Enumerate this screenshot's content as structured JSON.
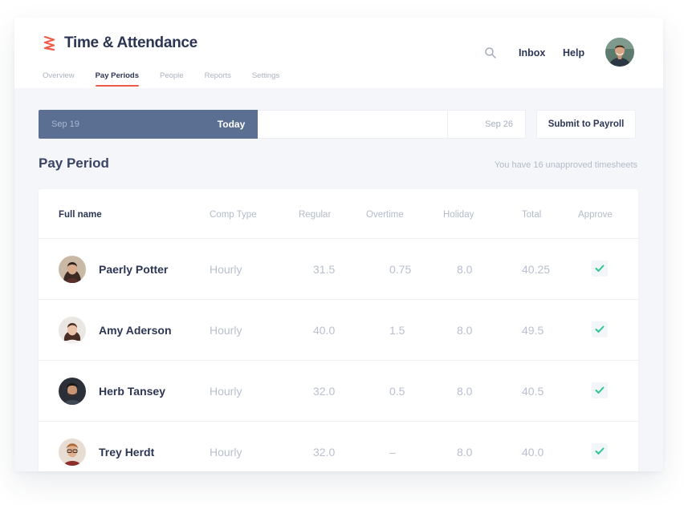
{
  "header": {
    "app_title": "Time & Attendance",
    "nav": [
      {
        "label": "Overview",
        "active": false
      },
      {
        "label": "Pay Periods",
        "active": true
      },
      {
        "label": "People",
        "active": false
      },
      {
        "label": "Reports",
        "active": false
      },
      {
        "label": "Settings",
        "active": false
      }
    ],
    "search_icon": "search-icon",
    "inbox_label": "Inbox",
    "help_label": "Help"
  },
  "timeline": {
    "start_date": "Sep 19",
    "today_label": "Today",
    "end_date": "Sep 26",
    "progress_percent": 45
  },
  "submit_label": "Submit to Payroll",
  "section_title": "Pay Period",
  "notice": "You have 16 unapproved timesheets",
  "table": {
    "headers": {
      "name": "Full name",
      "comp_type": "Comp Type",
      "regular": "Regular",
      "overtime": "Overtime",
      "holiday": "Holiday",
      "total": "Total",
      "approve": "Approve"
    },
    "rows": [
      {
        "name": "Paerly Potter",
        "comp_type": "Hourly",
        "regular": "31.5",
        "overtime": "0.75",
        "holiday": "8.0",
        "total": "40.25",
        "approved": true
      },
      {
        "name": "Amy Aderson",
        "comp_type": "Hourly",
        "regular": "40.0",
        "overtime": "1.5",
        "holiday": "8.0",
        "total": "49.5",
        "approved": true
      },
      {
        "name": "Herb Tansey",
        "comp_type": "Hourly",
        "regular": "32.0",
        "overtime": "0.5",
        "holiday": "8.0",
        "total": "40.5",
        "approved": true
      },
      {
        "name": "Trey Herdt",
        "comp_type": "Hourly",
        "regular": "32.0",
        "overtime": "–",
        "holiday": "8.0",
        "total": "40.0",
        "approved": true
      }
    ]
  },
  "colors": {
    "brand": "#ef5a4a",
    "timeline_fill": "#5b6f93",
    "approve_check": "#2fc58e",
    "text_dark": "#2c3654",
    "text_muted": "#b8c0cd"
  }
}
